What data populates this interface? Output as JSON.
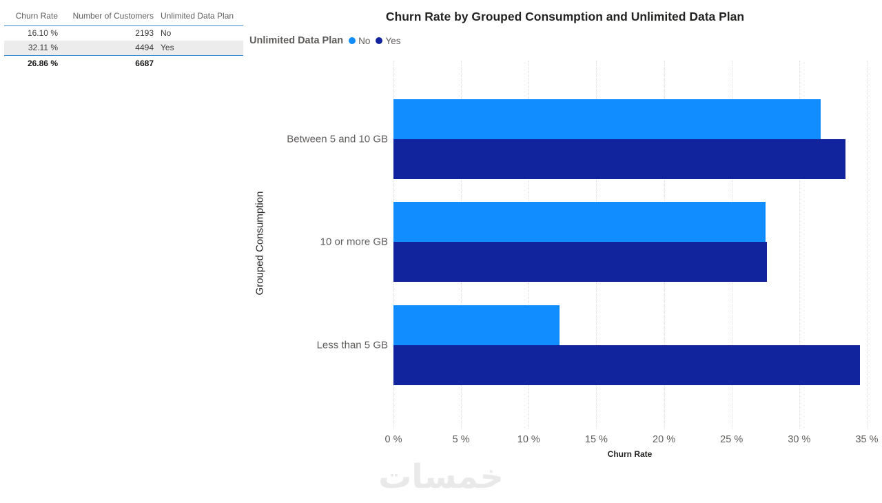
{
  "table": {
    "columns": [
      "Churn Rate",
      "Number of Customers",
      "Unlimited Data Plan"
    ],
    "rows": [
      {
        "churn_rate": "16.10 %",
        "customers": "2193",
        "plan": "No"
      },
      {
        "churn_rate": "32.11 %",
        "customers": "4494",
        "plan": "Yes"
      }
    ],
    "total": {
      "churn_rate": "26.86 %",
      "customers": "6687",
      "plan": ""
    }
  },
  "chart_data": {
    "type": "bar",
    "orientation": "horizontal",
    "title": "Churn Rate by Grouped Consumption and Unlimited Data Plan",
    "legend_title": "Unlimited Data Plan",
    "legend_position": "top-left",
    "categories": [
      "Between 5 and 10 GB",
      "10 or more GB",
      "Less than 5 GB"
    ],
    "series": [
      {
        "name": "No",
        "color": "#118DFF",
        "values": [
          31.6,
          27.5,
          12.3
        ]
      },
      {
        "name": "Yes",
        "color": "#12239E",
        "values": [
          33.4,
          27.6,
          34.5
        ]
      }
    ],
    "xlabel": "Churn Rate",
    "ylabel": "Grouped Consumption",
    "xlim": [
      0,
      35
    ],
    "x_tick_values": [
      0,
      5,
      10,
      15,
      20,
      25,
      30,
      35
    ],
    "x_ticks": [
      "0 %",
      "5 %",
      "10 %",
      "15 %",
      "20 %",
      "25 %",
      "30 %",
      "35 %"
    ],
    "grid": "vertical-dotted"
  },
  "watermark": "خمسات",
  "colors": {
    "series_no": "#118DFF",
    "series_yes": "#12239E",
    "table_divider": "#2E8BD1",
    "alt_row_bg": "#ECECEC",
    "text_dark": "#252423",
    "text_gray": "#605E5C",
    "watermark": "#E9E9E9"
  }
}
